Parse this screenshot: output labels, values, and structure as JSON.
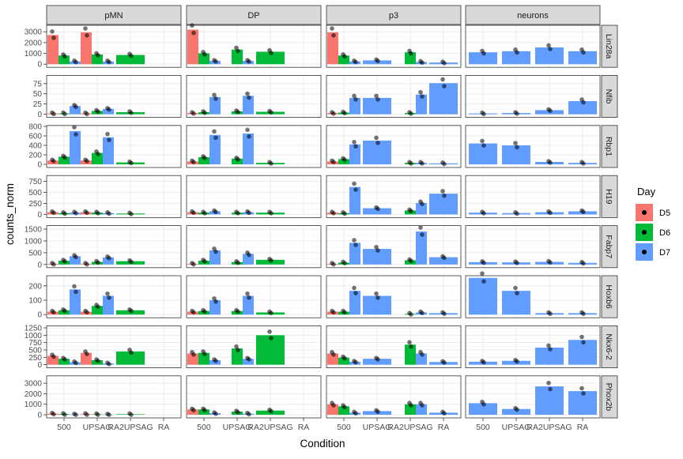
{
  "chart_data": {
    "type": "bar",
    "xlabel": "Condition",
    "ylabel": "counts_norm",
    "legend": {
      "title": "Day",
      "position": "right",
      "entries": [
        {
          "name": "D5",
          "color": "#F8766D"
        },
        {
          "name": "D6",
          "color": "#00BA38"
        },
        {
          "name": "D7",
          "color": "#619CFF"
        }
      ]
    },
    "columns": [
      "pMN",
      "DP",
      "p3",
      "neurons"
    ],
    "conditions": [
      "500",
      "UPSAG",
      "RA2UPSAG",
      "RA"
    ],
    "rows": [
      {
        "gene": "Lin28a",
        "ymax": 3600,
        "ticks": [
          0,
          1000,
          2000,
          3000
        ],
        "tick_labels": [
          "0",
          "1000",
          "2000",
          "3000"
        ],
        "panels": [
          [
            [
              2700,
              800,
              250
            ],
            [
              2950,
              900,
              250
            ],
            [
              null,
              850,
              null
            ],
            [
              null,
              null,
              null
            ]
          ],
          [
            [
              3200,
              1000,
              300
            ],
            [
              null,
              1350,
              300
            ],
            [
              null,
              1150,
              null
            ],
            [
              null,
              null,
              null
            ]
          ],
          [
            [
              2950,
              800,
              250
            ],
            [
              null,
              null,
              350
            ],
            [
              null,
              1100,
              200
            ],
            [
              null,
              null,
              150
            ]
          ],
          [
            [
              null,
              null,
              1100
            ],
            [
              null,
              null,
              1200
            ],
            [
              null,
              null,
              1550
            ],
            [
              null,
              null,
              1200
            ]
          ]
        ]
      },
      {
        "gene": "Nfib",
        "ymax": 95,
        "ticks": [
          0,
          25,
          50,
          75
        ],
        "tick_labels": [
          "0",
          "25",
          "50",
          "75"
        ],
        "panels": [
          [
            [
              2,
              2,
              20
            ],
            [
              2,
              8,
              13
            ],
            [
              null,
              5,
              null
            ],
            [
              null,
              null,
              null
            ]
          ],
          [
            [
              3,
              5,
              42
            ],
            [
              null,
              7,
              45
            ],
            [
              null,
              6,
              null
            ],
            [
              null,
              null,
              null
            ]
          ],
          [
            [
              3,
              4,
              40
            ],
            [
              null,
              null,
              40
            ],
            [
              null,
              3,
              48
            ],
            [
              null,
              null,
              76
            ]
          ],
          [
            [
              null,
              null,
              2
            ],
            [
              null,
              null,
              3
            ],
            [
              null,
              null,
              10
            ],
            [
              null,
              null,
              32
            ]
          ]
        ]
      },
      {
        "gene": "Rbp1",
        "ymax": 820,
        "ticks": [
          0,
          200,
          400,
          600,
          800
        ],
        "tick_labels": [
          "0",
          "200",
          "400",
          "600",
          "800"
        ],
        "panels": [
          [
            [
              80,
              160,
              700
            ],
            [
              80,
              240,
              570
            ],
            [
              null,
              40,
              null
            ],
            [
              null,
              null,
              null
            ]
          ],
          [
            [
              60,
              150,
              620
            ],
            [
              null,
              120,
              650
            ],
            [
              null,
              30,
              null
            ],
            [
              null,
              null,
              null
            ]
          ],
          [
            [
              60,
              110,
              420
            ],
            [
              null,
              null,
              500
            ],
            [
              null,
              30,
              30
            ],
            [
              null,
              null,
              20
            ]
          ],
          [
            [
              null,
              null,
              440
            ],
            [
              null,
              null,
              400
            ],
            [
              null,
              null,
              50
            ],
            [
              null,
              null,
              30
            ]
          ]
        ]
      },
      {
        "gene": "H19",
        "ymax": 880,
        "ticks": [
          0,
          250,
          500,
          750
        ],
        "tick_labels": [
          "0",
          "250",
          "500",
          "750"
        ],
        "panels": [
          [
            [
              50,
              30,
              40
            ],
            [
              50,
              40,
              30
            ],
            [
              null,
              20,
              null
            ],
            [
              null,
              null,
              null
            ]
          ],
          [
            [
              50,
              40,
              70
            ],
            [
              null,
              40,
              50
            ],
            [
              null,
              40,
              null
            ],
            [
              null,
              null,
              null
            ]
          ],
          [
            [
              40,
              30,
              620
            ],
            [
              null,
              null,
              140
            ],
            [
              null,
              90,
              260
            ],
            [
              null,
              null,
              470
            ]
          ],
          [
            [
              null,
              null,
              40
            ],
            [
              null,
              null,
              30
            ],
            [
              null,
              null,
              50
            ],
            [
              null,
              null,
              70
            ]
          ]
        ]
      },
      {
        "gene": "Fabp7",
        "ymax": 1650,
        "ticks": [
          0,
          500,
          1000,
          1500
        ],
        "tick_labels": [
          "0",
          "500",
          "1000",
          "1500"
        ],
        "panels": [
          [
            [
              30,
              160,
              350
            ],
            [
              30,
              110,
              300
            ],
            [
              null,
              140,
              null
            ],
            [
              null,
              null,
              null
            ]
          ],
          [
            [
              30,
              160,
              600
            ],
            [
              null,
              100,
              450
            ],
            [
              null,
              200,
              null
            ],
            [
              null,
              null,
              null
            ]
          ],
          [
            [
              30,
              80,
              920
            ],
            [
              null,
              null,
              660
            ],
            [
              null,
              180,
              1400
            ],
            [
              null,
              null,
              310
            ]
          ],
          [
            [
              null,
              null,
              100
            ],
            [
              null,
              null,
              90
            ],
            [
              null,
              null,
              110
            ],
            [
              null,
              null,
              70
            ]
          ]
        ]
      },
      {
        "gene": "Hoxb6",
        "ymax": 270,
        "ticks": [
          0,
          100,
          200
        ],
        "tick_labels": [
          "0",
          "100",
          "200"
        ],
        "panels": [
          [
            [
              20,
              30,
              175
            ],
            [
              20,
              60,
              130
            ],
            [
              null,
              30,
              null
            ],
            [
              null,
              null,
              null
            ]
          ],
          [
            [
              20,
              25,
              100
            ],
            [
              null,
              25,
              130
            ],
            [
              null,
              15,
              null
            ],
            [
              null,
              null,
              null
            ]
          ],
          [
            [
              20,
              20,
              165
            ],
            [
              null,
              null,
              130
            ],
            [
              null,
              5,
              15
            ],
            [
              null,
              null,
              10
            ]
          ],
          [
            [
              null,
              null,
              255
            ],
            [
              null,
              null,
              165
            ],
            [
              null,
              null,
              10
            ],
            [
              null,
              null,
              10
            ]
          ]
        ]
      },
      {
        "gene": "Nkx6-2",
        "ymax": 1320,
        "ticks": [
          0,
          250,
          500,
          750,
          1000,
          1250
        ],
        "tick_labels": [
          "0",
          "250",
          "500",
          "750",
          "1000",
          "1250"
        ],
        "panels": [
          [
            [
              300,
              200,
              80
            ],
            [
              400,
              150,
              40
            ],
            [
              null,
              450,
              null
            ],
            [
              null,
              null,
              null
            ]
          ],
          [
            [
              380,
              400,
              150
            ],
            [
              null,
              550,
              200
            ],
            [
              null,
              1000,
              null
            ],
            [
              null,
              null,
              null
            ]
          ],
          [
            [
              380,
              240,
              100
            ],
            [
              null,
              null,
              200
            ],
            [
              null,
              680,
              380
            ],
            [
              null,
              null,
              90
            ]
          ],
          [
            [
              null,
              null,
              100
            ],
            [
              null,
              null,
              130
            ],
            [
              null,
              null,
              580
            ],
            [
              null,
              null,
              840
            ]
          ]
        ]
      },
      {
        "gene": "Phox2b",
        "ymax": 3700,
        "ticks": [
          0,
          1000,
          2000,
          3000
        ],
        "tick_labels": [
          "0",
          "1000",
          "2000",
          "3000"
        ],
        "panels": [
          [
            [
              100,
              60,
              20
            ],
            [
              60,
              40,
              10
            ],
            [
              null,
              50,
              null
            ],
            [
              null,
              null,
              null
            ]
          ],
          [
            [
              500,
              500,
              150
            ],
            [
              null,
              300,
              100
            ],
            [
              null,
              400,
              null
            ],
            [
              null,
              null,
              null
            ]
          ],
          [
            [
              1000,
              800,
              200
            ],
            [
              null,
              null,
              350
            ],
            [
              null,
              1000,
              1000
            ],
            [
              null,
              null,
              200
            ]
          ],
          [
            [
              null,
              null,
              1100
            ],
            [
              null,
              null,
              550
            ],
            [
              null,
              null,
              2700
            ],
            [
              null,
              null,
              2250
            ]
          ]
        ]
      }
    ]
  }
}
